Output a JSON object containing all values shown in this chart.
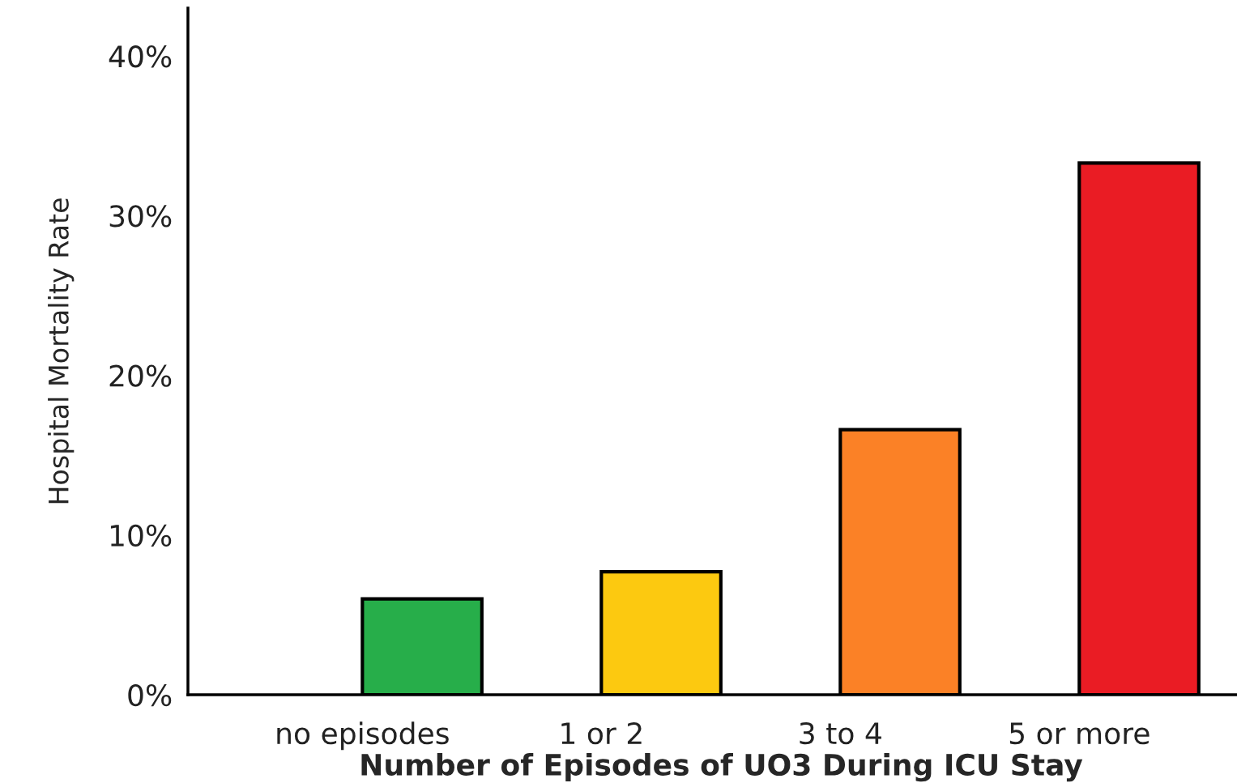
{
  "chart_data": {
    "type": "bar",
    "xlabel": "Number of Episodes of UO3 During ICU Stay",
    "ylabel": "Hospital Mortality Rate",
    "categories": [
      "no episodes",
      "1 or 2",
      "3 to 4",
      "5 or more"
    ],
    "values": [
      6.0,
      7.7,
      16.6,
      33.3
    ],
    "colors": [
      "#27ae4a",
      "#fcc910",
      "#fb8126",
      "#ea1c24"
    ],
    "ylim": [
      0,
      43
    ],
    "yticks": [
      {
        "value": 0,
        "label": "0%"
      },
      {
        "value": 10,
        "label": "10%"
      },
      {
        "value": 20,
        "label": "20%"
      },
      {
        "value": 30,
        "label": "30%"
      },
      {
        "value": 40,
        "label": "40%"
      }
    ],
    "grid": false,
    "legend": false
  }
}
